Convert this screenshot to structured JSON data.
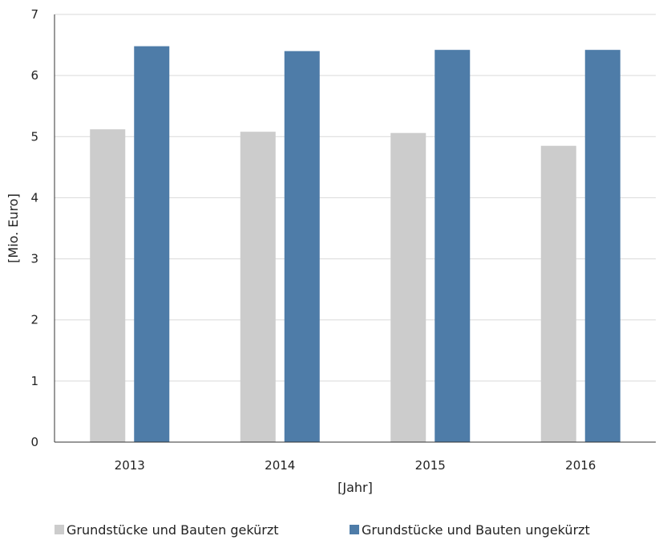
{
  "chart_data": {
    "type": "bar",
    "categories": [
      "2013",
      "2014",
      "2015",
      "2016"
    ],
    "series": [
      {
        "name": "Grundstücke und Bauten gekürzt",
        "color": "#cccccc",
        "values": [
          5.12,
          5.08,
          5.06,
          4.85
        ]
      },
      {
        "name": "Grundstücke und Bauten ungekürzt",
        "color": "#4e7ca8",
        "values": [
          6.48,
          6.4,
          6.42,
          6.42
        ]
      }
    ],
    "title": "",
    "xlabel": "[Jahr]",
    "ylabel": "[Mio. Euro]",
    "ylim": [
      0,
      7
    ],
    "yticks": [
      "0",
      "1",
      "2",
      "3",
      "4",
      "5",
      "6",
      "7"
    ],
    "grid": true,
    "legend_position": "bottom",
    "gridline_color": "#d9d9d9"
  }
}
